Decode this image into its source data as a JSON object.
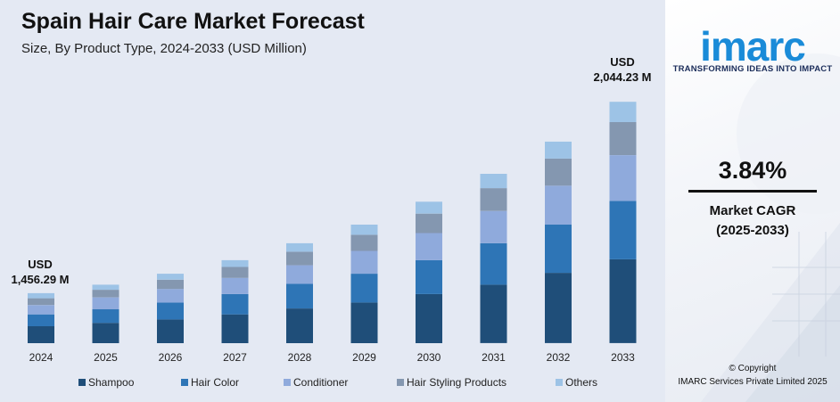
{
  "header": {
    "title": "Spain Hair Care Market Forecast",
    "subtitle": "Size, By Product Type, 2024-2033 (USD Million)"
  },
  "annotations": {
    "start_unit": "USD",
    "start_value": "1,456.29 M",
    "end_unit": "USD",
    "end_value": "2,044.23 M"
  },
  "brand": {
    "logo_text": "imarc",
    "tagline": "TRANSFORMING IDEAS INTO IMPACT",
    "color": "#1a8bd8"
  },
  "cagr": {
    "value": "3.84%",
    "label_line1": "Market CAGR",
    "label_line2": "(2025-2033)"
  },
  "footer": {
    "copyright_line1": "© Copyright",
    "copyright_line2": "IMARC Services Private Limited 2025"
  },
  "chart_data": {
    "type": "bar",
    "stacked": true,
    "categories": [
      "2024",
      "2025",
      "2026",
      "2027",
      "2028",
      "2029",
      "2030",
      "2031",
      "2032",
      "2033"
    ],
    "series": [
      {
        "name": "Shampoo",
        "color": "#1f4e79",
        "values": [
          20,
          24,
          28,
          34,
          41,
          48,
          58,
          69,
          83,
          99
        ]
      },
      {
        "name": "Hair Color",
        "color": "#2e75b6",
        "values": [
          14,
          16,
          20,
          24,
          29,
          34,
          40,
          49,
          57,
          69
        ]
      },
      {
        "name": "Conditioner",
        "color": "#8faadc",
        "values": [
          11,
          14,
          16,
          19,
          22,
          27,
          32,
          38,
          46,
          54
        ]
      },
      {
        "name": "Hair Styling Products",
        "color": "#8497b0",
        "values": [
          8,
          9,
          11,
          13,
          16,
          19,
          23,
          27,
          32,
          39
        ]
      },
      {
        "name": "Others",
        "color": "#9dc3e6",
        "values": [
          6,
          6,
          7,
          8,
          10,
          12,
          14,
          17,
          20,
          24
        ]
      }
    ],
    "ylim": [
      0,
      300
    ],
    "grid": false,
    "legend_position": "bottom"
  }
}
